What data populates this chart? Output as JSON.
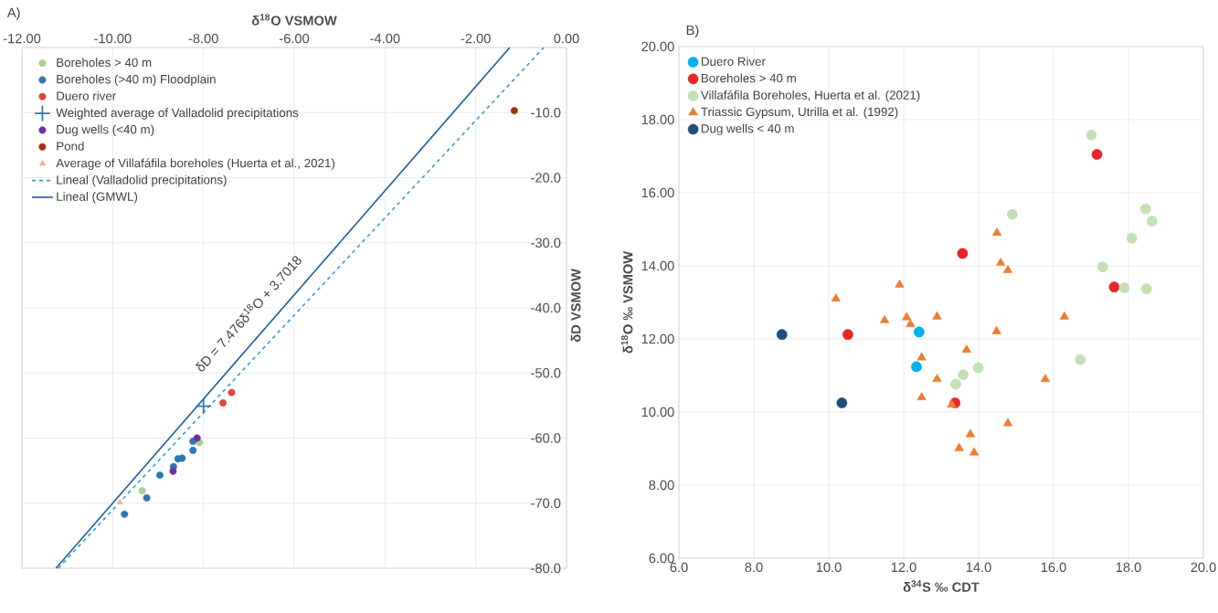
{
  "chart_data": [
    {
      "type": "scatter",
      "xlabel": "δ$^{18}$O VSMOW",
      "ylabel": "δD VSMOW",
      "xlim": [
        -12,
        0
      ],
      "ylim": [
        -80,
        0
      ],
      "xticks": [
        {
          "value": -12,
          "label": "-12.00"
        },
        {
          "value": -10,
          "label": "-10.00"
        },
        {
          "value": -8,
          "label": "-8.00"
        },
        {
          "value": -6,
          "label": "-6.00"
        },
        {
          "value": -4,
          "label": "-4.00"
        },
        {
          "value": -2,
          "label": "-2.00"
        },
        {
          "value": 0,
          "label": "0.00"
        }
      ],
      "yticks": [
        {
          "value": -80,
          "label": "-80.0"
        },
        {
          "value": -70,
          "label": "-70.0"
        },
        {
          "value": -60,
          "label": "-60.0"
        },
        {
          "value": -50,
          "label": "-50.0"
        },
        {
          "value": -40,
          "label": "-40.0"
        },
        {
          "value": -30,
          "label": "-30.0"
        },
        {
          "value": -20,
          "label": "-20.0"
        },
        {
          "value": -10,
          "label": "-10.0"
        },
        {
          "value": 0,
          "label": null
        }
      ],
      "grid": true,
      "legend": "top left",
      "annotations": [
        "A)",
        "δD = 7.476δ$^{18}$O + 3.7018"
      ],
      "series": [
        {
          "name": "Boreholes > 40 m",
          "color": "#a9d18e",
          "marker": "circle",
          "x": [
            -8.09,
            -9.35
          ],
          "values": [
            -60.7,
            -68.1
          ]
        },
        {
          "name": "Boreholes (>40 m) Floodplain",
          "color": "#2e75b6",
          "marker": "circle",
          "x": [
            -8.23,
            -8.23,
            -8.66,
            -8.56,
            -8.47,
            -8.96,
            -9.25,
            -9.74
          ],
          "values": [
            -60.5,
            -61.9,
            -64.4,
            -63.2,
            -63.1,
            -65.7,
            -69.2,
            -71.7
          ]
        },
        {
          "name": "Duero river",
          "color": "#e0453a",
          "marker": "circle",
          "x": [
            -7.38,
            -7.57
          ],
          "values": [
            -53.0,
            -54.6
          ]
        },
        {
          "name": "Weighted average of Valladolid precipitations",
          "color": "#2e75b6",
          "marker": "cross",
          "x": [
            -8.0
          ],
          "values": [
            -55.1
          ]
        },
        {
          "name": "Dug wells (<40 m)",
          "color": "#7030a0",
          "marker": "circle",
          "x": [
            -8.14,
            -8.67
          ],
          "values": [
            -60.0,
            -65.1
          ]
        },
        {
          "name": "Pond",
          "color": "#a5300f",
          "marker": "circle",
          "x": [
            -1.15
          ],
          "values": [
            -9.7
          ]
        },
        {
          "name": "Average of Villafáfila boreholes (Huerta et al., 2021)",
          "color": "#f4b183",
          "marker": "triangle",
          "x": [
            -9.84
          ],
          "values": [
            -69.9
          ]
        },
        {
          "name": "Lineal (Valladolid precipitations)",
          "type": "line",
          "color": "#3a9ad9",
          "marker": "none",
          "line_style": "dashed",
          "x": [
            -11.2,
            -0.5
          ],
          "values": [
            -80,
            0
          ]
        },
        {
          "name": "Lineal (GMWL)",
          "type": "line",
          "color": "#1f5f99",
          "marker": "none",
          "line_style": "solid",
          "x": [
            -11.25,
            -1.25
          ],
          "values": [
            -80,
            0
          ]
        }
      ]
    },
    {
      "type": "scatter",
      "xlabel": "δ$^{34}$S ‰ CDT",
      "ylabel": "δ$^{18}$O ‰ VSMOW",
      "xlim": [
        6,
        20
      ],
      "ylim": [
        6,
        20
      ],
      "xticks": [
        {
          "value": 6,
          "label": "6.0"
        },
        {
          "value": 8,
          "label": "8.0"
        },
        {
          "value": 10,
          "label": "10.0"
        },
        {
          "value": 12,
          "label": "12.0"
        },
        {
          "value": 14,
          "label": "14.0"
        },
        {
          "value": 16,
          "label": "16.0"
        },
        {
          "value": 18,
          "label": "18.0"
        },
        {
          "value": 20,
          "label": "20.0"
        }
      ],
      "yticks": [
        {
          "value": 6,
          "label": "6.00"
        },
        {
          "value": 8,
          "label": "8.00"
        },
        {
          "value": 10,
          "label": "10.00"
        },
        {
          "value": 12,
          "label": "12.00"
        },
        {
          "value": 14,
          "label": "14.00"
        },
        {
          "value": 16,
          "label": "16.00"
        },
        {
          "value": 18,
          "label": "18.00"
        },
        {
          "value": 20,
          "label": "20.00"
        }
      ],
      "grid": true,
      "legend": "top left",
      "annotations": [
        "B)"
      ],
      "series": [
        {
          "name": "Duero River",
          "color": "#00b0f0",
          "marker": "circle",
          "x": [
            12.41,
            12.34
          ],
          "values": [
            12.19,
            11.24
          ]
        },
        {
          "name": "Boreholes > 40 m",
          "color": "#e8262a",
          "marker": "circle",
          "x": [
            10.51,
            13.37,
            13.57,
            17.16,
            17.62
          ],
          "values": [
            12.12,
            10.25,
            14.34,
            17.05,
            13.42
          ]
        },
        {
          "name": "Villafáfila Boreholes, Huerta et al. (2021)",
          "color": "#c5e0b4",
          "marker": "circle",
          "x": [
            17.01,
            14.9,
            18.46,
            18.63,
            18.09,
            17.31,
            17.89,
            18.48,
            13.39,
            13.59,
            13.99,
            16.71
          ],
          "values": [
            17.58,
            15.41,
            15.56,
            15.22,
            14.76,
            13.97,
            13.4,
            13.37,
            10.76,
            11.02,
            11.21,
            11.43
          ]
        },
        {
          "name": "Triassic Gypsum, Utrilla et al. (1992)",
          "color": "#ed7d31",
          "marker": "triangle",
          "x": [
            14.49,
            14.59,
            14.78,
            11.89,
            10.19,
            11.49,
            12.08,
            12.18,
            12.89,
            16.29,
            14.48,
            13.68,
            12.48,
            12.89,
            15.78,
            12.48,
            13.28,
            14.78,
            13.78,
            13.48,
            13.88
          ],
          "values": [
            14.9,
            14.08,
            13.88,
            13.48,
            13.1,
            12.51,
            12.59,
            12.4,
            12.61,
            12.61,
            12.21,
            11.7,
            11.49,
            10.9,
            10.9,
            10.4,
            10.2,
            9.69,
            9.39,
            9.01,
            8.89
          ]
        },
        {
          "name": "Dug wells < 40 m",
          "color": "#1f4e79",
          "marker": "circle",
          "x": [
            8.75,
            10.35
          ],
          "values": [
            12.12,
            10.25
          ]
        }
      ]
    }
  ]
}
